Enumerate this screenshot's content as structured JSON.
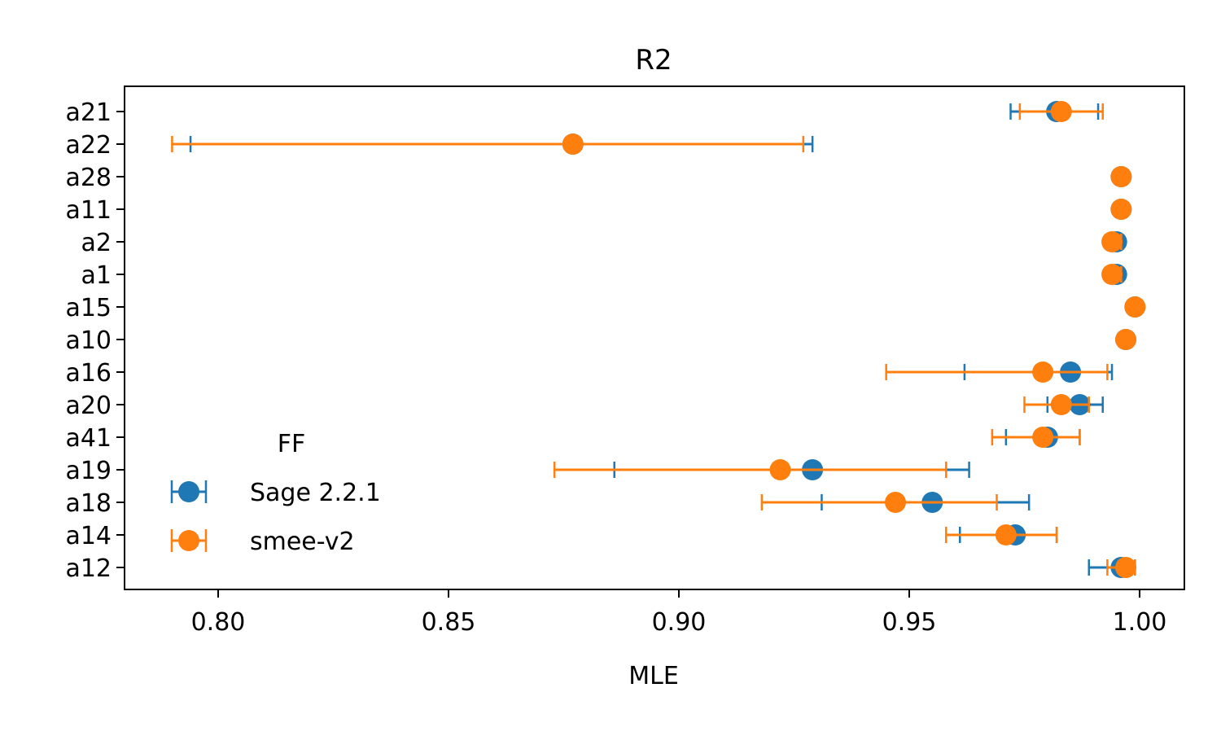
{
  "chart_data": {
    "type": "scatter",
    "title": "R2",
    "xlabel": "MLE",
    "ylabel": "",
    "xlim": [
      0.78,
      1.01
    ],
    "xticks": [
      "0.80",
      "0.85",
      "0.90",
      "0.95",
      "1.00"
    ],
    "xtick_values": [
      0.8,
      0.85,
      0.9,
      0.95,
      1.0
    ],
    "categories": [
      "a21",
      "a22",
      "a28",
      "a11",
      "a2",
      "a1",
      "a15",
      "a10",
      "a16",
      "a20",
      "a41",
      "a19",
      "a18",
      "a14",
      "a12"
    ],
    "grid": false,
    "legend": {
      "title": "FF",
      "position": "lower-left"
    },
    "series": [
      {
        "name": "Sage 2.2.1",
        "color": "#1f77b4",
        "values": [
          0.982,
          0.877,
          0.996,
          0.996,
          0.995,
          0.995,
          0.999,
          0.997,
          0.985,
          0.987,
          0.98,
          0.929,
          0.955,
          0.973,
          0.996
        ],
        "err_low": [
          0.972,
          0.794,
          0.995,
          0.995,
          0.993,
          0.993,
          0.998,
          0.996,
          0.962,
          0.98,
          0.971,
          0.886,
          0.931,
          0.961,
          0.989
        ],
        "err_high": [
          0.991,
          0.929,
          0.997,
          0.997,
          0.996,
          0.996,
          0.999,
          0.998,
          0.994,
          0.992,
          0.987,
          0.963,
          0.976,
          0.982,
          0.999
        ]
      },
      {
        "name": "smee-v2",
        "color": "#ff7f0e",
        "values": [
          0.983,
          0.877,
          0.996,
          0.996,
          0.994,
          0.994,
          0.999,
          0.997,
          0.979,
          0.983,
          0.979,
          0.922,
          0.947,
          0.971,
          0.997
        ],
        "err_low": [
          0.974,
          0.79,
          0.995,
          0.995,
          0.993,
          0.993,
          0.998,
          0.996,
          0.945,
          0.975,
          0.968,
          0.873,
          0.918,
          0.958,
          0.993
        ],
        "err_high": [
          0.992,
          0.927,
          0.997,
          0.997,
          0.996,
          0.996,
          0.999,
          0.998,
          0.993,
          0.989,
          0.987,
          0.958,
          0.969,
          0.982,
          0.999
        ]
      }
    ]
  }
}
